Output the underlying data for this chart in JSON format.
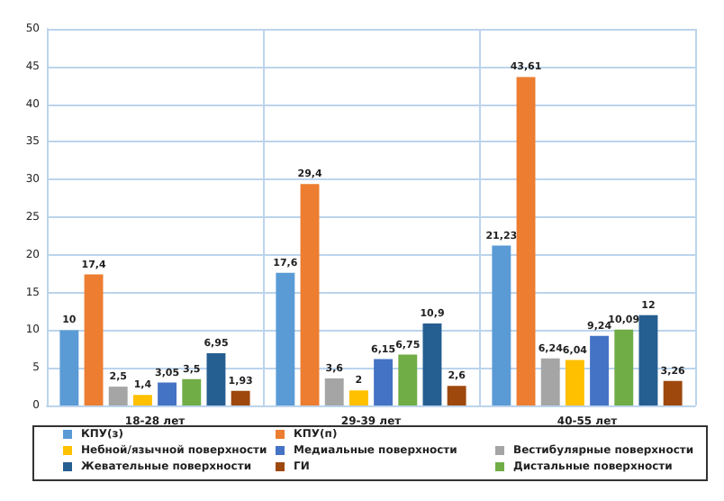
{
  "chart_data": {
    "type": "bar",
    "categories": [
      "18-28 лет",
      "29-39 лет",
      "40-55 лет"
    ],
    "series": [
      {
        "name": "КПУ(з)",
        "color": "#5b9bd5",
        "values": [
          10,
          17.6,
          21.23
        ],
        "value_labels": [
          "10",
          "17,6",
          "21,23"
        ]
      },
      {
        "name": "КПУ(п)",
        "color": "#ed7d31",
        "values": [
          17.4,
          29.4,
          43.61
        ],
        "value_labels": [
          "17,4",
          "29,4",
          "43,61"
        ]
      },
      {
        "name": "Вестибулярные поверхности",
        "color": "#a5a5a5",
        "values": [
          2.5,
          3.6,
          6.24
        ],
        "value_labels": [
          "2,5",
          "3,6",
          "6,24"
        ]
      },
      {
        "name": "Небной/язычной поверхности",
        "color": "#ffc000",
        "values": [
          1.4,
          2,
          6.04
        ],
        "value_labels": [
          "1,4",
          "2",
          "6,04"
        ]
      },
      {
        "name": "Медиальные поверхности",
        "color": "#4472c4",
        "values": [
          3.05,
          6.15,
          9.24
        ],
        "value_labels": [
          "3,05",
          "6,15",
          "9,24"
        ]
      },
      {
        "name": "Дистальные поверхности",
        "color": "#70ad47",
        "values": [
          3.5,
          6.75,
          10.09
        ],
        "value_labels": [
          "3,5",
          "6,75",
          "10,09"
        ]
      },
      {
        "name": "Жевательные поверхности",
        "color": "#255e91",
        "values": [
          6.95,
          10.9,
          12
        ],
        "value_labels": [
          "6,95",
          "10,9",
          "12"
        ]
      },
      {
        "name": "ГИ",
        "color": "#9e480e",
        "values": [
          1.93,
          2.6,
          3.26
        ],
        "value_labels": [
          "1,93",
          "2,6",
          "3,26"
        ]
      }
    ],
    "ylim": [
      0,
      50
    ],
    "yticks": [
      0,
      5,
      10,
      15,
      20,
      25,
      30,
      35,
      40,
      45,
      50
    ],
    "grid": true,
    "legend": "bottom"
  }
}
